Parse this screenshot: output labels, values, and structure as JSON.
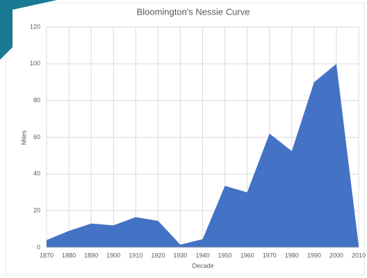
{
  "chart_data": {
    "type": "area",
    "title": "Bloomington's Nessie Curve",
    "x_label": "Decade",
    "y_label": "Miles",
    "categories": [
      "1870",
      "1880",
      "1890",
      "1900",
      "1910",
      "1920",
      "1930",
      "1940",
      "1950",
      "1960",
      "1970",
      "1980",
      "1990",
      "2000",
      "2010"
    ],
    "values": [
      4,
      9,
      13,
      12,
      16.5,
      14.5,
      1.5,
      4.5,
      33.5,
      30,
      62,
      52.5,
      90,
      100,
      1
    ],
    "color": "#4472c4",
    "ylim": [
      0,
      120
    ],
    "yticks": [
      0,
      20,
      40,
      60,
      80,
      100,
      120
    ],
    "grid": true
  }
}
